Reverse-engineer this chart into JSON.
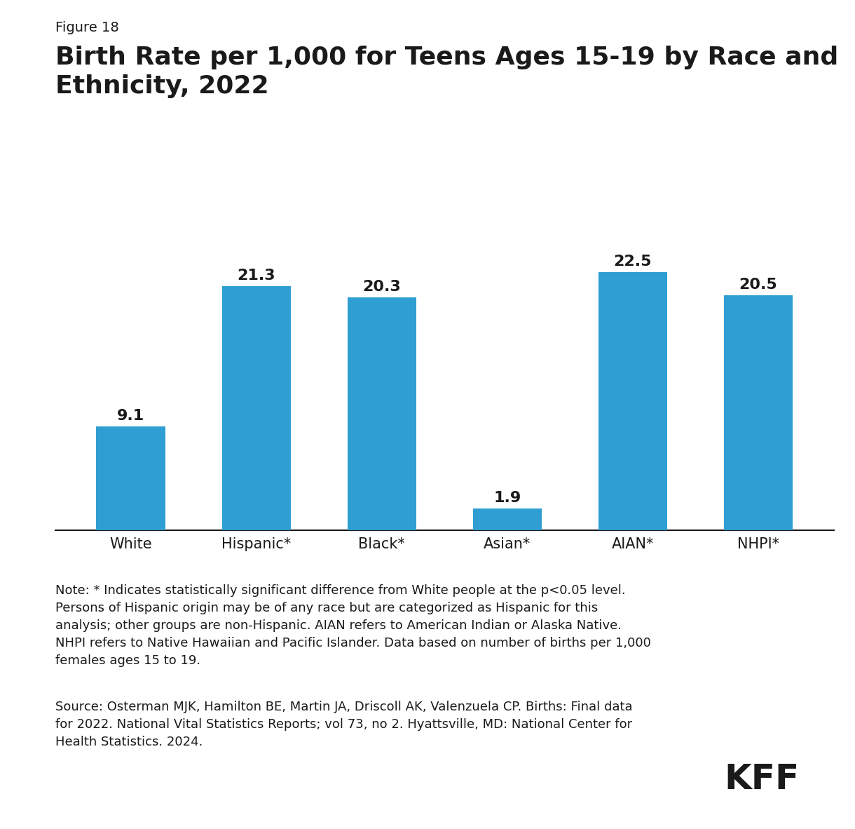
{
  "figure_label": "Figure 18",
  "title": "Birth Rate per 1,000 for Teens Ages 15-19 by Race and\nEthnicity, 2022",
  "categories": [
    "White",
    "Hispanic*",
    "Black*",
    "Asian*",
    "AIAN*",
    "NHPI*"
  ],
  "values": [
    9.1,
    21.3,
    20.3,
    1.9,
    22.5,
    20.5
  ],
  "bar_color": "#2e9ed3",
  "background_color": "#ffffff",
  "text_color": "#1a1a1a",
  "note_line1": "Note: * Indicates statistically significant difference from White people at the p<0.05 level.",
  "note_line2": "Persons of Hispanic origin may be of any race but are categorized as Hispanic for this",
  "note_line3": "analysis; other groups are non-Hispanic. AIAN refers to American Indian or Alaska Native.",
  "note_line4": "NHPI refers to Native Hawaiian and Pacific Islander. Data based on number of births per 1,000",
  "note_line5": "females ages 15 to 19.",
  "source_line1": "Source: Osterman MJK, Hamilton BE, Martin JA, Driscoll AK, Valenzuela CP. Births: Final data",
  "source_line2": "for 2022. National Vital Statistics Reports; vol 73, no 2. Hyattsville, MD: National Center for",
  "source_line3": "Health Statistics. 2024.",
  "kff_label": "KFF",
  "ylim": [
    0,
    26
  ],
  "value_fontsize": 16,
  "xlabel_fontsize": 15,
  "title_fontsize": 26,
  "figure_label_fontsize": 14,
  "note_fontsize": 13,
  "source_fontsize": 13
}
